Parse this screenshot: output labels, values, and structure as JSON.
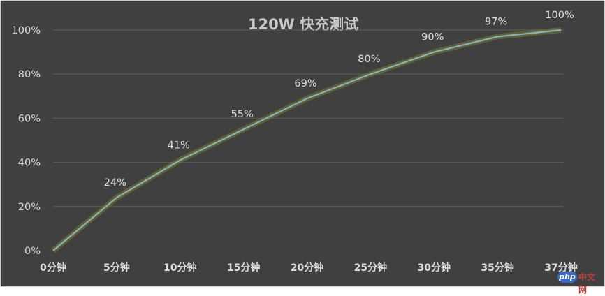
{
  "chart_data": {
    "type": "line",
    "title": "120W 快充测试",
    "categories": [
      "0分钟",
      "5分钟",
      "10分钟",
      "15分钟",
      "20分钟",
      "25分钟",
      "30分钟",
      "35分钟",
      "37分钟"
    ],
    "series": [
      {
        "values": [
          0,
          24,
          41,
          55,
          69,
          80,
          90,
          97,
          100
        ]
      }
    ],
    "data_labels": [
      "24%",
      "41%",
      "55%",
      "69%",
      "80%",
      "90%",
      "97%",
      "100%"
    ],
    "yticks": [
      "0%",
      "20%",
      "40%",
      "60%",
      "80%",
      "100%"
    ],
    "ylim": [
      0,
      100
    ],
    "grid": true,
    "legend": "none",
    "colors": {
      "line": "#8ab1c0",
      "glow": "#7a7a2a",
      "background": "#404040"
    }
  },
  "watermark": {
    "badge": "php",
    "text": "中文网"
  }
}
